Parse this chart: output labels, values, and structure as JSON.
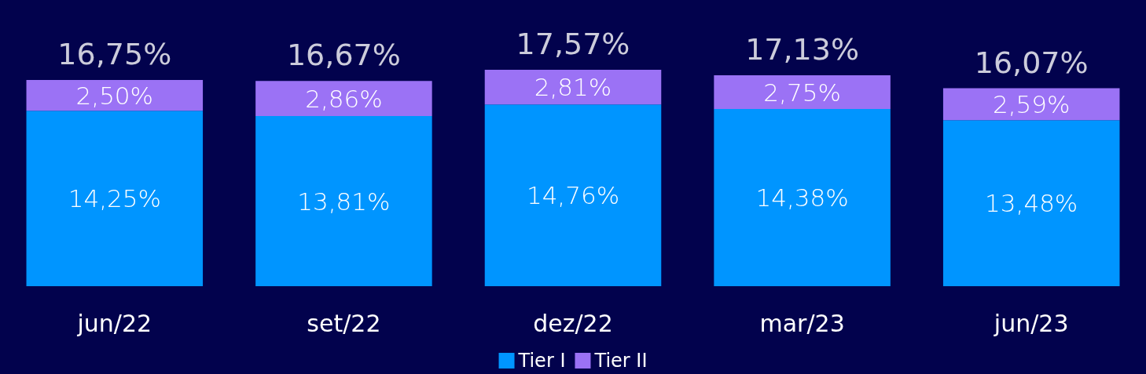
{
  "chart_data": {
    "type": "bar",
    "stacked": true,
    "categories": [
      "jun/22",
      "set/22",
      "dez/22",
      "mar/23",
      "jun/23"
    ],
    "series": [
      {
        "name": "Tier I",
        "color": "#0095ff",
        "values": [
          14.25,
          13.81,
          14.76,
          14.38,
          13.48
        ],
        "value_labels": [
          "14,25%",
          "13,81%",
          "14,76%",
          "14,38%",
          "13,48%"
        ]
      },
      {
        "name": "Tier II",
        "color": "#9b72f5",
        "values": [
          2.5,
          2.86,
          2.81,
          2.75,
          2.59
        ],
        "value_labels": [
          "2,50%",
          "2,86%",
          "2,81%",
          "2,75%",
          "2,59%"
        ]
      }
    ],
    "totals": [
      "16,75%",
      "16,67%",
      "17,57%",
      "17,13%",
      "16,07%"
    ],
    "legend": "bottom",
    "grid": false
  }
}
